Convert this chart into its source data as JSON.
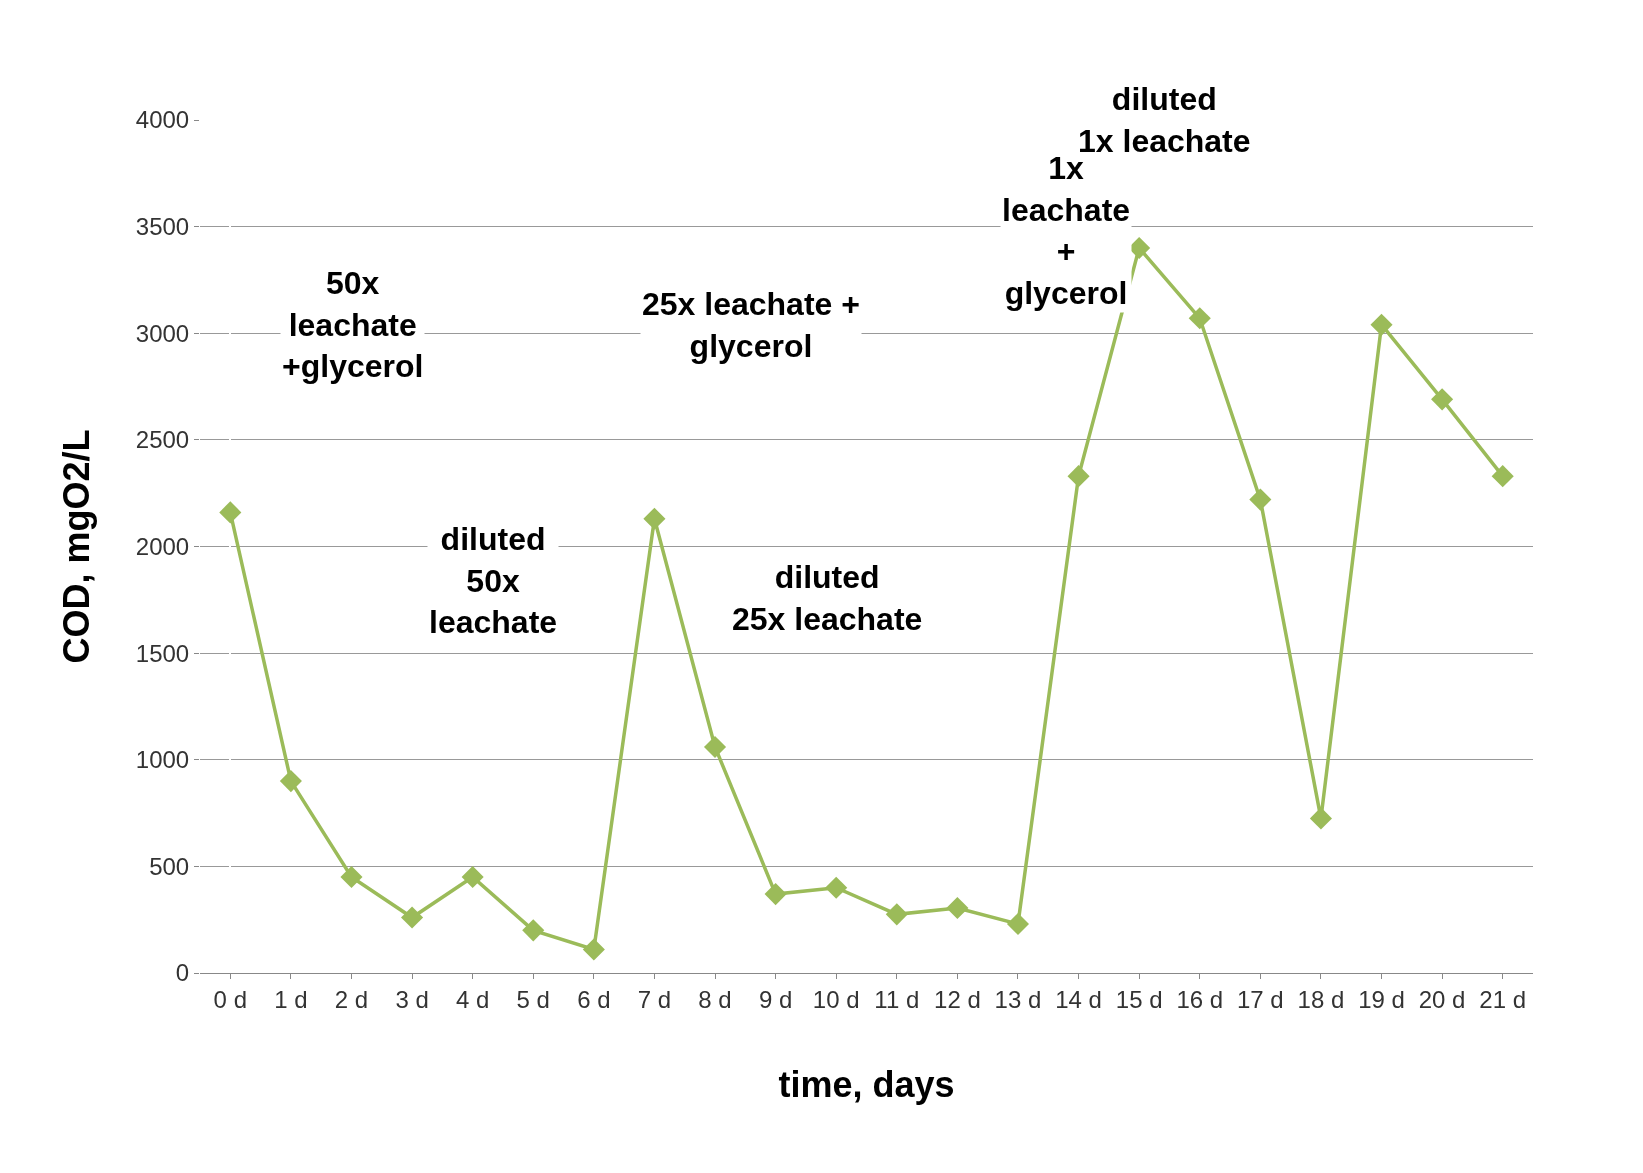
{
  "chart_data": {
    "type": "line",
    "xlabel": "time, days",
    "ylabel": "COD, mgO2/L",
    "categories": [
      "0 d",
      "1 d",
      "2 d",
      "3 d",
      "4 d",
      "5 d",
      "6 d",
      "7 d",
      "8 d",
      "9 d",
      "10 d",
      "11 d",
      "12 d",
      "13 d",
      "14 d",
      "15 d",
      "16 d",
      "17 d",
      "18 d",
      "19 d",
      "20 d",
      "21 d"
    ],
    "series": [
      {
        "color": "#9bbb59",
        "values": [
          2160,
          900,
          450,
          260,
          450,
          200,
          110,
          2130,
          1060,
          370,
          400,
          275,
          305,
          230,
          2330,
          3400,
          3070,
          2220,
          725,
          3040,
          2690,
          2330
        ]
      }
    ],
    "ylim": [
      0,
      4000
    ],
    "yticks": [
      0,
      500,
      1000,
      1500,
      2000,
      2500,
      3000,
      3500,
      4000
    ],
    "grid": "y",
    "legend": false,
    "marker": "diamond",
    "line_style": "solid",
    "annotations": [
      "50x\nleachate\n+glycerol",
      "diluted\n50x\nleachate",
      "25x leachate +\nglycerol",
      "diluted\n25x leachate",
      "1x\nleachate\n+\nglycerol",
      "diluted\n1x leachate"
    ]
  }
}
